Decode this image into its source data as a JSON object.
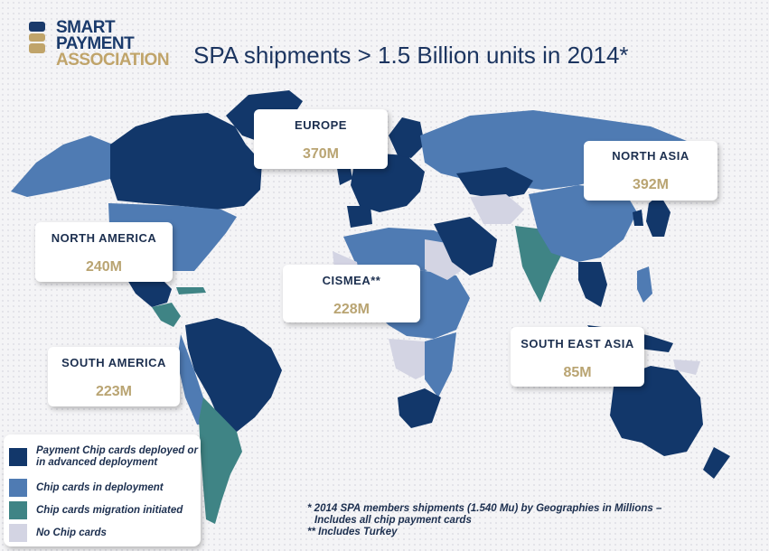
{
  "logo": {
    "line1": "SMART",
    "line2": "PAYMENT",
    "line3": "ASSOCIATION"
  },
  "title": "SPA shipments > 1.5 Billion units in 2014*",
  "regions": {
    "europe": {
      "name": "EUROPE",
      "value": "370M"
    },
    "north_asia": {
      "name": "NORTH ASIA",
      "value": "392M"
    },
    "north_america": {
      "name": "NORTH AMERICA",
      "value": "240M"
    },
    "cismea": {
      "name": "CISMEA**",
      "value": "228M"
    },
    "south_east_asia": {
      "name": "SOUTH EAST ASIA",
      "value": "85M"
    },
    "south_america": {
      "name": "SOUTH AMERICA",
      "value": "223M"
    }
  },
  "legend": [
    {
      "label": "Payment Chip cards deployed or in advanced deployment",
      "color": "#12376a"
    },
    {
      "label": "Chip cards in deployment",
      "color": "#4f7bb3"
    },
    {
      "label": "Chip cards migration initiated",
      "color": "#3f8485"
    },
    {
      "label": "No Chip cards",
      "color": "#d3d4e3"
    }
  ],
  "footnote": {
    "line1": "* 2014 SPA members shipments (1.540 Mu) by Geographies in Millions –",
    "line2": "Includes all chip payment cards",
    "line3": "** Includes Turkey"
  },
  "colors": {
    "advanced": "#12376a",
    "deployment": "#4f7bb3",
    "migration": "#3f8485",
    "none": "#d3d4e3",
    "brand_blue": "#1a3a6b",
    "brand_gold": "#c0a46a"
  }
}
